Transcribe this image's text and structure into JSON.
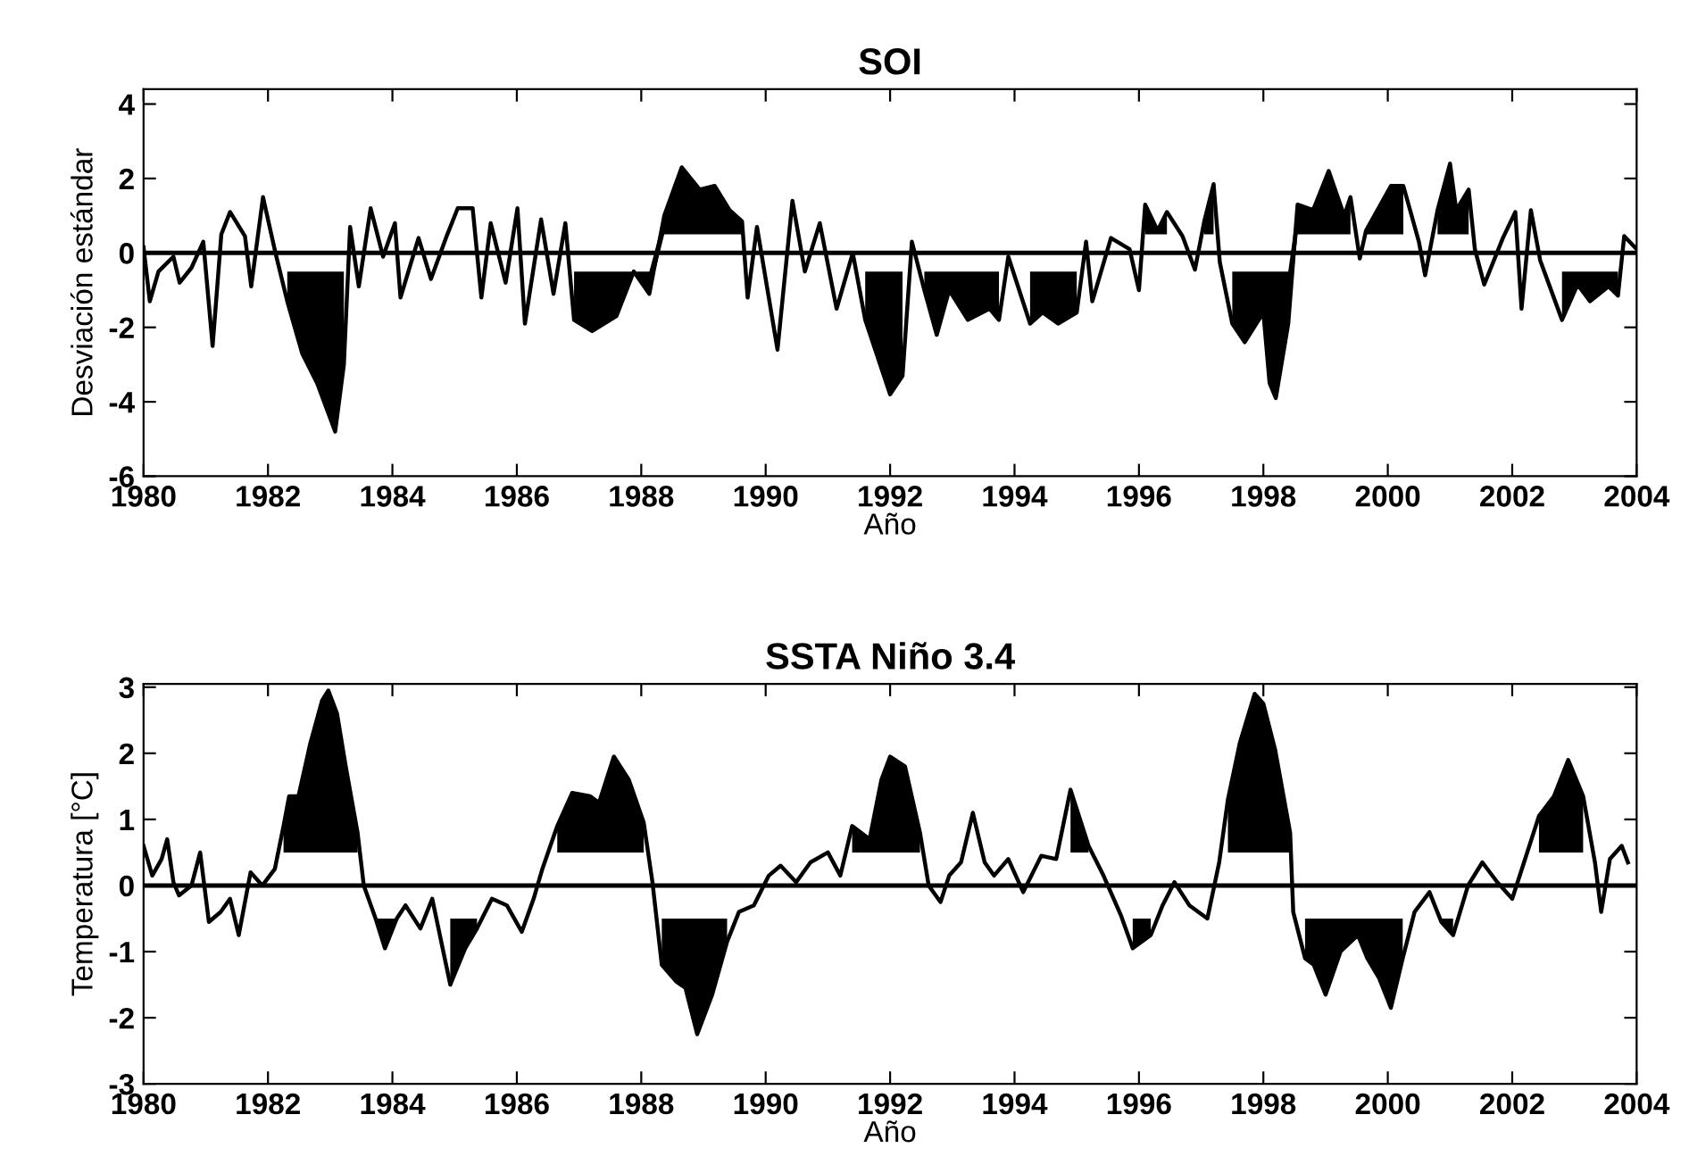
{
  "chart_data": [
    {
      "type": "line",
      "title": "SOI",
      "xlabel": "Año",
      "ylabel": "Desviación estándar",
      "xlim": [
        1980,
        2004
      ],
      "xticks": [
        1980,
        1982,
        1984,
        1986,
        1988,
        1990,
        1992,
        1994,
        1996,
        1998,
        2000,
        2002,
        2004
      ],
      "ylim": [
        -6,
        4.4
      ],
      "yticks": [
        -6,
        -4,
        -2,
        0,
        2,
        4
      ],
      "ref_lines": [
        {
          "axis": "y",
          "value": 0,
          "color": "#000000",
          "line_style": "solid"
        }
      ],
      "series": [
        {
          "color": "#000000",
          "x": [
            1980.0,
            1980.1,
            1980.24,
            1980.48,
            1980.58,
            1980.77,
            1980.96,
            1981.11,
            1981.25,
            1981.39,
            1981.63,
            1981.73,
            1981.92,
            1982.12,
            1982.31,
            1982.55,
            1982.79,
            1983.08,
            1983.22,
            1983.32,
            1983.46,
            1983.65,
            1983.85,
            1984.04,
            1984.13,
            1984.42,
            1984.62,
            1984.86,
            1985.05,
            1985.29,
            1985.43,
            1985.58,
            1985.82,
            1986.01,
            1986.13,
            1986.39,
            1986.59,
            1986.78,
            1986.92,
            1987.21,
            1987.6,
            1987.88,
            1988.13,
            1988.37,
            1988.65,
            1988.94,
            1989.18,
            1989.42,
            1989.62,
            1989.71,
            1989.86,
            1990.19,
            1990.43,
            1990.63,
            1990.87,
            1991.14,
            1991.4,
            1991.6,
            1992.0,
            1992.2,
            1992.35,
            1992.55,
            1992.75,
            1992.95,
            1993.25,
            1993.6,
            1993.75,
            1993.9,
            1994.25,
            1994.45,
            1994.7,
            1995.0,
            1995.15,
            1995.25,
            1995.55,
            1995.85,
            1996.0,
            1996.1,
            1996.3,
            1996.45,
            1996.7,
            1996.9,
            1997.05,
            1997.2,
            1997.3,
            1997.5,
            1997.7,
            1998.0,
            1998.1,
            1998.2,
            1998.4,
            1998.55,
            1998.8,
            1999.05,
            1999.3,
            1999.4,
            1999.55,
            1999.65,
            1999.85,
            2000.05,
            2000.25,
            2000.5,
            2000.6,
            2000.8,
            2001.0,
            2001.1,
            2001.3,
            2001.4,
            2001.55,
            2001.85,
            2002.05,
            2002.15,
            2002.3,
            2002.45,
            2002.8,
            2003.05,
            2003.25,
            2003.55,
            2003.7,
            2003.8,
            2004.0
          ],
          "values": [
            0.15,
            -1.3,
            -0.5,
            -0.1,
            -0.8,
            -0.4,
            0.3,
            -2.5,
            0.5,
            1.1,
            0.45,
            -0.9,
            1.5,
            0,
            -1.3,
            -2.7,
            -3.5,
            -4.8,
            -3.0,
            0.7,
            -0.9,
            1.2,
            -0.1,
            0.8,
            -1.2,
            0.4,
            -0.7,
            0.4,
            1.2,
            1.2,
            -1.2,
            0.8,
            -0.8,
            1.2,
            -1.9,
            0.9,
            -1.1,
            0.8,
            -1.8,
            -2.1,
            -1.7,
            -0.5,
            -1.1,
            1.0,
            2.3,
            1.7,
            1.8,
            1.15,
            0.85,
            -1.2,
            0.7,
            -2.6,
            1.4,
            -0.5,
            0.8,
            -1.5,
            0,
            -1.8,
            -3.8,
            -3.3,
            0.3,
            -1.0,
            -2.2,
            -1.0,
            -1.8,
            -1.5,
            -1.8,
            -0.1,
            -1.9,
            -1.6,
            -1.9,
            -1.6,
            0.3,
            -1.3,
            0.4,
            0.1,
            -1.0,
            1.3,
            0.6,
            1.1,
            0.45,
            -0.45,
            0.85,
            1.85,
            -0.25,
            -1.9,
            -2.4,
            -1.6,
            -3.5,
            -3.9,
            -1.9,
            1.3,
            1.15,
            2.2,
            1.0,
            1.5,
            -0.15,
            0.6,
            1.2,
            1.8,
            1.8,
            0.3,
            -0.6,
            1.15,
            2.4,
            1.15,
            1.7,
            0.1,
            -0.85,
            0.4,
            1.1,
            -1.5,
            1.15,
            -0.2,
            -1.8,
            -0.85,
            -1.3,
            -0.9,
            -1.15,
            0.45,
            0.1
          ],
          "lower": [
            null,
            null,
            null,
            null,
            null,
            null,
            null,
            null,
            null,
            null,
            null,
            null,
            null,
            null,
            -1.3,
            -2.7,
            -3.5,
            -4.8,
            -3.0,
            null,
            null,
            null,
            null,
            null,
            null,
            null,
            null,
            null,
            null,
            null,
            null,
            null,
            null,
            null,
            null,
            null,
            null,
            null,
            -1.8,
            -2.1,
            -1.7,
            -0.5,
            -1.1,
            0.5,
            0.5,
            0.5,
            0.5,
            0.5,
            0.5,
            null,
            null,
            null,
            null,
            null,
            null,
            null,
            null,
            -1.8,
            -3.8,
            -3.3,
            null,
            -1.0,
            -2.2,
            -1.0,
            -1.8,
            -1.5,
            -1.8,
            null,
            -1.9,
            -1.6,
            -1.9,
            -1.6,
            null,
            null,
            null,
            null,
            null,
            0.5,
            0.5,
            0.5,
            null,
            null,
            0.5,
            0.5,
            null,
            -1.9,
            -2.4,
            -1.6,
            -3.5,
            -3.9,
            -1.9,
            0.5,
            0.5,
            0.5,
            0.5,
            0.5,
            null,
            0.5,
            0.5,
            0.5,
            0.5,
            null,
            null,
            0.5,
            0.5,
            0.5,
            0.5,
            null,
            null,
            null,
            null,
            null,
            null,
            null,
            -1.8,
            -0.85,
            -1.3,
            -0.9,
            -1.15,
            null,
            null
          ],
          "upper": [
            null,
            null,
            null,
            null,
            null,
            null,
            null,
            null,
            null,
            null,
            null,
            null,
            null,
            null,
            -0.5,
            -0.5,
            -0.5,
            -0.5,
            -0.5,
            null,
            null,
            null,
            null,
            null,
            null,
            null,
            null,
            null,
            null,
            null,
            null,
            null,
            null,
            null,
            null,
            null,
            null,
            null,
            -0.5,
            -0.5,
            -0.5,
            -0.5,
            -0.5,
            1.0,
            2.3,
            1.7,
            1.8,
            1.15,
            0.85,
            null,
            null,
            null,
            null,
            null,
            null,
            null,
            null,
            -0.5,
            -0.5,
            -0.5,
            null,
            -0.5,
            -0.5,
            -0.5,
            -0.5,
            -0.5,
            -0.5,
            null,
            -0.5,
            -0.5,
            -0.5,
            -0.5,
            null,
            null,
            null,
            null,
            null,
            1.3,
            0.6,
            1.1,
            null,
            null,
            0.85,
            1.85,
            null,
            -0.5,
            -0.5,
            -0.5,
            -0.5,
            -0.5,
            -0.5,
            1.3,
            1.15,
            2.2,
            1.0,
            1.5,
            null,
            0.6,
            1.2,
            1.8,
            1.8,
            null,
            null,
            1.15,
            2.4,
            1.15,
            1.7,
            null,
            null,
            null,
            null,
            null,
            null,
            null,
            -0.5,
            -0.5,
            -0.5,
            -0.5,
            -0.5,
            null,
            null
          ]
        }
      ]
    },
    {
      "type": "line",
      "title": "SSTA Niño 3.4",
      "xlabel": "Año",
      "ylabel": "Temperatura [°C]",
      "xlim": [
        1980,
        2004
      ],
      "xticks": [
        1980,
        1982,
        1984,
        1986,
        1988,
        1990,
        1992,
        1994,
        1996,
        1998,
        2000,
        2002,
        2004
      ],
      "ylim": [
        -3,
        3.05
      ],
      "yticks": [
        -3,
        -2,
        -1,
        0,
        1,
        2,
        3
      ],
      "ref_lines": [
        {
          "axis": "y",
          "value": 0,
          "color": "#000000",
          "line_style": "solid"
        }
      ],
      "series": [
        {
          "color": "#000000",
          "x": [
            1980.0,
            1980.14,
            1980.29,
            1980.38,
            1980.48,
            1980.57,
            1980.77,
            1980.91,
            1981.05,
            1981.24,
            1981.39,
            1981.53,
            1981.72,
            1981.91,
            1982.11,
            1982.25,
            1982.34,
            1982.49,
            1982.68,
            1982.87,
            1982.97,
            1983.11,
            1983.25,
            1983.44,
            1983.54,
            1983.73,
            1983.88,
            1984.07,
            1984.21,
            1984.45,
            1984.64,
            1984.93,
            1985.17,
            1985.36,
            1985.6,
            1985.84,
            1986.08,
            1986.27,
            1986.41,
            1986.65,
            1986.89,
            1987.18,
            1987.32,
            1987.56,
            1987.8,
            1988.04,
            1988.18,
            1988.33,
            1988.56,
            1988.71,
            1988.9,
            1989.14,
            1989.38,
            1989.57,
            1989.81,
            1990.05,
            1990.24,
            1990.49,
            1990.72,
            1991.0,
            1991.2,
            1991.39,
            1991.67,
            1991.86,
            1992.0,
            1992.24,
            1992.48,
            1992.62,
            1992.81,
            1992.95,
            1993.14,
            1993.33,
            1993.52,
            1993.67,
            1993.9,
            1994.14,
            1994.43,
            1994.67,
            1994.9,
            1995.19,
            1995.43,
            1995.71,
            1995.9,
            1996.19,
            1996.38,
            1996.57,
            1996.81,
            1997.1,
            1997.29,
            1997.43,
            1997.62,
            1997.86,
            1998.0,
            1998.19,
            1998.43,
            1998.48,
            1998.67,
            1998.81,
            1999.0,
            1999.24,
            1999.52,
            1999.67,
            1999.86,
            2000.05,
            2000.24,
            2000.43,
            2000.67,
            2000.86,
            2001.05,
            2001.29,
            2001.52,
            2001.76,
            2002.0,
            2002.19,
            2002.43,
            2002.67,
            2002.9,
            2003.14,
            2003.33,
            2003.43,
            2003.57,
            2003.76,
            2003.86
          ],
          "values": [
            0.6,
            0.15,
            0.4,
            0.7,
            0.05,
            -0.15,
            0,
            0.5,
            -0.55,
            -0.4,
            -0.2,
            -0.75,
            0.2,
            0,
            0.25,
            0.9,
            1.35,
            1.35,
            2.15,
            2.8,
            2.95,
            2.6,
            1.8,
            0.8,
            0,
            -0.5,
            -0.95,
            -0.5,
            -0.3,
            -0.65,
            -0.2,
            -1.5,
            -0.95,
            -0.65,
            -0.2,
            -0.3,
            -0.7,
            -0.2,
            0.25,
            0.9,
            1.4,
            1.35,
            1.25,
            1.95,
            1.6,
            0.95,
            0.05,
            -1.2,
            -1.45,
            -1.55,
            -2.25,
            -1.65,
            -0.85,
            -0.4,
            -0.3,
            0.15,
            0.3,
            0.05,
            0.35,
            0.5,
            0.15,
            0.9,
            0.7,
            1.6,
            1.95,
            1.8,
            0.8,
            0,
            -0.25,
            0.15,
            0.35,
            1.1,
            0.35,
            0.15,
            0.4,
            -0.1,
            0.45,
            0.4,
            1.45,
            0.6,
            0.15,
            -0.45,
            -0.95,
            -0.75,
            -0.3,
            0.05,
            -0.3,
            -0.5,
            0.35,
            1.3,
            2.15,
            2.9,
            2.75,
            2.05,
            0.8,
            -0.4,
            -1.1,
            -1.2,
            -1.65,
            -1.0,
            -0.75,
            -1.1,
            -1.4,
            -1.85,
            -1.1,
            -0.4,
            -0.1,
            -0.55,
            -0.75,
            0,
            0.35,
            0.05,
            -0.2,
            0.35,
            1.05,
            1.35,
            1.9,
            1.35,
            0.35,
            -0.4,
            0.4,
            0.6,
            0.35
          ],
          "lower": [
            null,
            null,
            null,
            null,
            null,
            null,
            null,
            null,
            null,
            null,
            null,
            null,
            null,
            null,
            null,
            0.5,
            0.5,
            0.5,
            0.5,
            0.5,
            0.5,
            0.5,
            0.5,
            0.5,
            null,
            -0.5,
            -0.95,
            -0.5,
            null,
            null,
            null,
            -1.5,
            -0.95,
            -0.65,
            null,
            null,
            null,
            null,
            null,
            0.5,
            0.5,
            0.5,
            0.5,
            0.5,
            0.5,
            0.5,
            null,
            -1.2,
            -1.45,
            -1.55,
            -2.25,
            -1.65,
            -0.85,
            null,
            null,
            null,
            null,
            null,
            null,
            null,
            null,
            0.5,
            0.5,
            0.5,
            0.5,
            0.5,
            0.5,
            null,
            null,
            null,
            null,
            null,
            null,
            null,
            null,
            null,
            null,
            null,
            0.5,
            0.5,
            null,
            null,
            -0.95,
            -0.75,
            null,
            null,
            null,
            null,
            null,
            0.5,
            0.5,
            0.5,
            0.5,
            0.5,
            0.5,
            null,
            -1.1,
            -1.2,
            -1.65,
            -1.0,
            -0.75,
            -1.1,
            -1.4,
            -1.85,
            -1.1,
            null,
            null,
            -0.55,
            -0.75,
            null,
            null,
            null,
            null,
            null,
            0.5,
            0.5,
            0.5,
            0.5,
            null,
            null,
            null,
            null,
            null
          ],
          "upper": [
            null,
            null,
            null,
            null,
            null,
            null,
            null,
            null,
            null,
            null,
            null,
            null,
            null,
            null,
            null,
            0.9,
            1.35,
            1.35,
            2.15,
            2.8,
            2.95,
            2.6,
            1.8,
            0.8,
            null,
            -0.5,
            -0.5,
            -0.5,
            null,
            null,
            null,
            -0.5,
            -0.5,
            -0.5,
            null,
            null,
            null,
            null,
            null,
            0.9,
            1.4,
            1.35,
            1.25,
            1.95,
            1.6,
            0.95,
            null,
            -0.5,
            -0.5,
            -0.5,
            -0.5,
            -0.5,
            -0.5,
            null,
            null,
            null,
            null,
            null,
            null,
            null,
            null,
            0.9,
            0.7,
            1.6,
            1.95,
            1.8,
            0.8,
            null,
            null,
            null,
            null,
            null,
            null,
            null,
            null,
            null,
            null,
            null,
            1.45,
            0.6,
            null,
            null,
            -0.5,
            -0.5,
            null,
            null,
            null,
            null,
            null,
            1.3,
            2.15,
            2.9,
            2.75,
            2.05,
            0.8,
            null,
            -0.5,
            -0.5,
            -0.5,
            -0.5,
            -0.5,
            -0.5,
            -0.5,
            -0.5,
            -0.5,
            null,
            null,
            -0.5,
            -0.5,
            null,
            null,
            null,
            null,
            null,
            1.05,
            1.35,
            1.9,
            1.35,
            null,
            null,
            null,
            null,
            null
          ]
        }
      ]
    }
  ]
}
